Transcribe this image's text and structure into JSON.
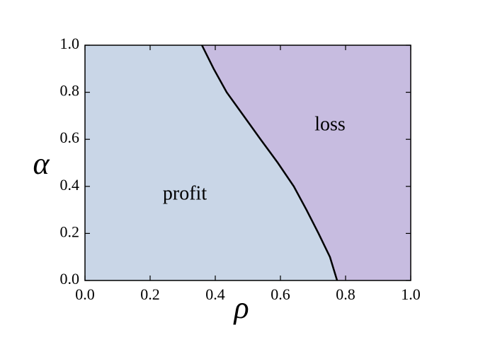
{
  "chart_data": {
    "type": "line",
    "xlabel": "ρ",
    "ylabel": "α",
    "annotations": [
      "profit",
      "loss"
    ],
    "regions": [
      {
        "color": "#c9d6e7"
      },
      {
        "color": "#c7bce0"
      }
    ],
    "x": [
      0.774,
      0.752,
      0.717,
      0.68,
      0.641,
      0.592,
      0.539,
      0.487,
      0.435,
      0.395,
      0.359
    ],
    "values": [
      0,
      0.1,
      0.2,
      0.3,
      0.4,
      0.5,
      0.6,
      0.7,
      0.8,
      0.9,
      1.0
    ],
    "color": "#000000",
    "xlim": [
      0,
      1
    ],
    "ylim": [
      0,
      1
    ],
    "xticks": [
      {
        "value": 0,
        "label": "0.0"
      },
      0.2,
      0.4,
      0.6,
      0.8,
      {
        "value": 1,
        "label": "1.0"
      }
    ],
    "yticks": [
      {
        "value": 0,
        "label": "0.0"
      },
      0.2,
      0.4,
      0.6,
      0.8,
      {
        "value": 1,
        "label": "1.0"
      }
    ]
  }
}
